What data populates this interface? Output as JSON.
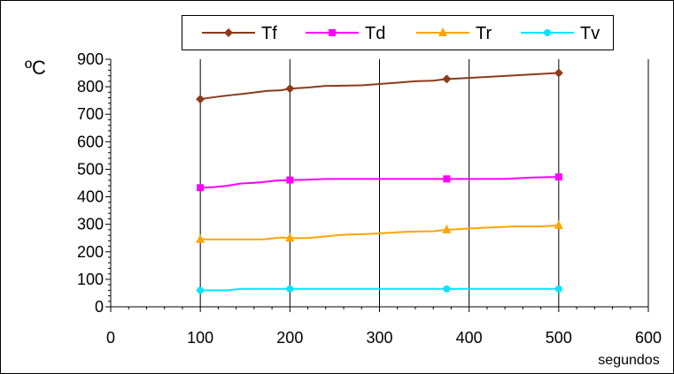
{
  "chart_data": {
    "type": "line",
    "xlabel": "segundos",
    "ylabel": "ºC",
    "xlim": [
      0,
      600
    ],
    "ylim": [
      0,
      900
    ],
    "x_ticks": [
      "0",
      "100",
      "200",
      "300",
      "400",
      "500",
      "600"
    ],
    "y_ticks": [
      "0",
      "100",
      "200",
      "300",
      "400",
      "500",
      "600",
      "700",
      "800",
      "900"
    ],
    "grid": "vertical",
    "legend_position": "top",
    "series": [
      {
        "name": "Tf",
        "color": "#8B3A1A",
        "marker": "diamond",
        "line": [
          [
            100,
            755
          ],
          [
            115,
            762
          ],
          [
            130,
            768
          ],
          [
            150,
            775
          ],
          [
            175,
            785
          ],
          [
            190,
            787
          ],
          [
            200,
            793
          ],
          [
            220,
            797
          ],
          [
            240,
            803
          ],
          [
            280,
            805
          ],
          [
            320,
            815
          ],
          [
            340,
            820
          ],
          [
            360,
            822
          ],
          [
            375,
            828
          ],
          [
            400,
            832
          ],
          [
            500,
            850
          ]
        ],
        "markers": [
          [
            100,
            755
          ],
          [
            200,
            793
          ],
          [
            375,
            828
          ],
          [
            500,
            850
          ]
        ]
      },
      {
        "name": "Td",
        "color": "#FF00FF",
        "marker": "square",
        "line": [
          [
            100,
            433
          ],
          [
            115,
            435
          ],
          [
            130,
            440
          ],
          [
            145,
            448
          ],
          [
            165,
            452
          ],
          [
            185,
            459
          ],
          [
            200,
            461
          ],
          [
            220,
            462
          ],
          [
            240,
            465
          ],
          [
            375,
            465
          ],
          [
            440,
            465
          ],
          [
            470,
            470
          ],
          [
            500,
            472
          ]
        ],
        "markers": [
          [
            100,
            433
          ],
          [
            200,
            461
          ],
          [
            375,
            465
          ],
          [
            500,
            472
          ]
        ]
      },
      {
        "name": "Tr",
        "color": "#FFA500",
        "marker": "triangle",
        "line": [
          [
            100,
            245
          ],
          [
            170,
            245
          ],
          [
            190,
            252
          ],
          [
            200,
            250
          ],
          [
            220,
            250
          ],
          [
            260,
            262
          ],
          [
            290,
            265
          ],
          [
            330,
            273
          ],
          [
            360,
            275
          ],
          [
            375,
            280
          ],
          [
            420,
            288
          ],
          [
            450,
            292
          ],
          [
            480,
            292
          ],
          [
            500,
            296
          ]
        ],
        "markers": [
          [
            100,
            245
          ],
          [
            200,
            250
          ],
          [
            375,
            280
          ],
          [
            500,
            296
          ]
        ]
      },
      {
        "name": "Tv",
        "color": "#00E5FF",
        "marker": "circle",
        "line": [
          [
            100,
            60
          ],
          [
            130,
            60
          ],
          [
            145,
            65
          ],
          [
            200,
            65
          ],
          [
            375,
            65
          ],
          [
            500,
            65
          ]
        ],
        "markers": [
          [
            100,
            60
          ],
          [
            200,
            65
          ],
          [
            375,
            65
          ],
          [
            500,
            65
          ]
        ]
      }
    ]
  }
}
